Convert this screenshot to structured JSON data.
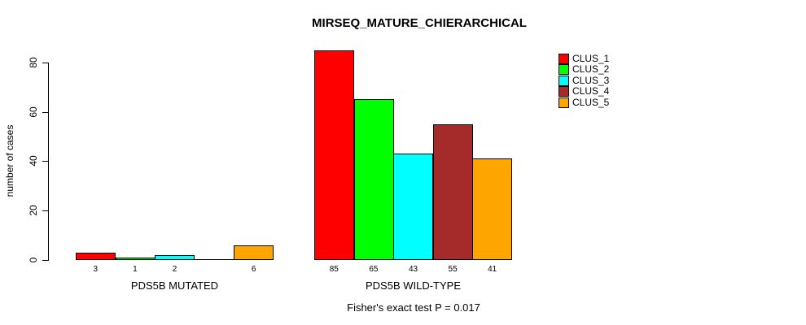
{
  "title": "MIRSEQ_MATURE_CHIERARCHICAL",
  "subtitle": "Fisher's exact test P = 0.017",
  "colors": {
    "bar_border": "#000000",
    "background": "#ffffff"
  },
  "legend": {
    "position": "top-right",
    "entries": [
      {
        "label": "CLUS_1",
        "color": "#ff0000"
      },
      {
        "label": "CLUS_2",
        "color": "#00ff00"
      },
      {
        "label": "CLUS_3",
        "color": "#00ffff"
      },
      {
        "label": "CLUS_4",
        "color": "#a52a2a"
      },
      {
        "label": "CLUS_5",
        "color": "#ffa500"
      }
    ]
  },
  "chart_data": {
    "type": "bar",
    "title": "MIRSEQ_MATURE_CHIERARCHICAL",
    "ylabel": "number of cases",
    "xlabel": "",
    "y_ticks": [
      0,
      20,
      40,
      60,
      80
    ],
    "ylim": [
      0,
      88
    ],
    "grid": false,
    "legend_position": "top-right",
    "series_names": [
      "CLUS_1",
      "CLUS_2",
      "CLUS_3",
      "CLUS_4",
      "CLUS_5"
    ],
    "series_colors": [
      "#ff0000",
      "#00ff00",
      "#00ffff",
      "#a52a2a",
      "#ffa500"
    ],
    "groups": [
      {
        "label": "PDS5B MUTATED",
        "values": [
          3,
          1,
          2,
          0,
          6
        ],
        "value_labels": [
          "3",
          "1",
          "2",
          "",
          "6"
        ]
      },
      {
        "label": "PDS5B WILD-TYPE",
        "values": [
          85,
          65,
          43,
          55,
          41
        ],
        "value_labels": [
          "85",
          "65",
          "43",
          "55",
          "41"
        ]
      }
    ],
    "annotation": "Fisher's exact test P = 0.017"
  }
}
